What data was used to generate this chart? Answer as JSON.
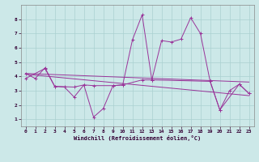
{
  "title": "",
  "xlabel": "Windchill (Refroidissement éolien,°C)",
  "bg_color": "#cce8e8",
  "line_color": "#993399",
  "xlim": [
    -0.5,
    23.5
  ],
  "ylim": [
    0.5,
    9.0
  ],
  "xticks": [
    0,
    1,
    2,
    3,
    4,
    5,
    6,
    7,
    8,
    9,
    10,
    11,
    12,
    13,
    14,
    15,
    16,
    17,
    18,
    19,
    20,
    21,
    22,
    23
  ],
  "yticks": [
    1,
    2,
    3,
    4,
    5,
    6,
    7,
    8
  ],
  "grid_color": "#aad0d0",
  "series1_x": [
    0,
    1,
    2,
    3,
    4,
    5,
    6,
    7,
    8,
    9,
    10,
    11,
    12,
    13,
    14,
    15,
    16,
    17,
    18,
    19,
    20,
    21,
    22,
    23
  ],
  "series1_y": [
    4.2,
    3.85,
    4.6,
    3.3,
    3.25,
    2.55,
    3.4,
    1.15,
    1.75,
    3.35,
    3.4,
    6.55,
    8.3,
    3.75,
    6.5,
    6.4,
    6.6,
    8.1,
    7.0,
    3.65,
    1.65,
    3.0,
    3.45,
    2.8
  ],
  "series2_x": [
    0,
    23
  ],
  "series2_y": [
    4.2,
    3.6
  ],
  "series3_x": [
    0,
    23
  ],
  "series3_y": [
    4.15,
    2.65
  ],
  "series4_x": [
    0,
    2,
    3,
    5,
    6,
    7,
    9,
    10,
    12,
    13,
    19,
    20,
    22,
    23
  ],
  "series4_y": [
    3.85,
    4.55,
    3.3,
    3.25,
    3.4,
    3.35,
    3.35,
    3.4,
    3.75,
    3.75,
    3.65,
    1.65,
    3.45,
    2.8
  ]
}
